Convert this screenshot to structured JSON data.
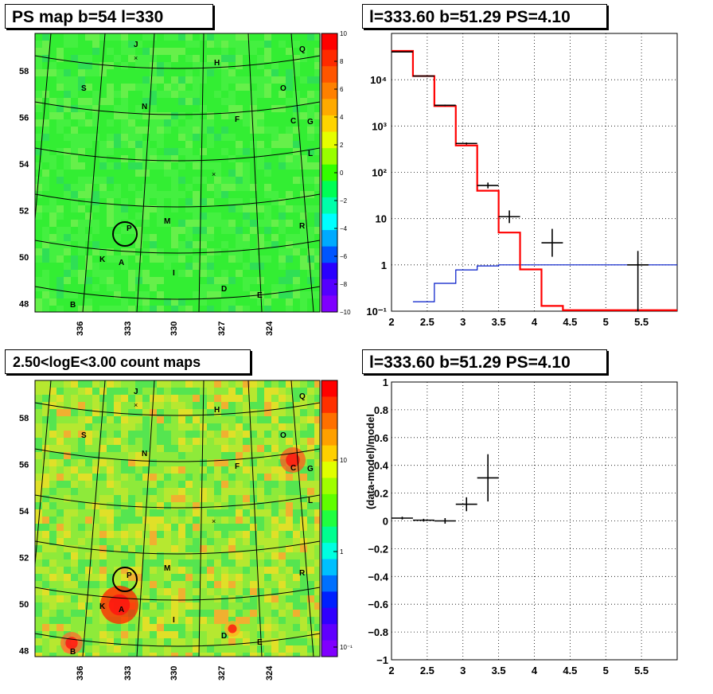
{
  "panels": {
    "tl_title": "PS map b=54 l=330",
    "tr_title": "l=333.60 b=51.29 PS=4.10",
    "bl_title": "2.50<logE<3.00 count maps",
    "br_title": "l=333.60 b=51.29 PS=4.10"
  },
  "maps": {
    "lat_ticks": [
      "58",
      "56",
      "54",
      "52",
      "50",
      "48"
    ],
    "lon_ticks": [
      "336",
      "333",
      "330",
      "327",
      "324"
    ],
    "sources": [
      "J",
      "Q",
      "H",
      "S",
      "O",
      "N",
      "F",
      "C",
      "G",
      "L",
      "M",
      "R",
      "P",
      "K",
      "A",
      "I",
      "D",
      "E",
      "B"
    ],
    "ps_colorbar": {
      "labels": [
        "10",
        "8",
        "6",
        "4",
        "2",
        "0",
        "−2",
        "−4",
        "−6",
        "−8",
        "−10"
      ],
      "colors": [
        "#7f00ff",
        "#2a5cff",
        "#00d0ff",
        "#00ffa0",
        "#33ff33",
        "#ffd400",
        "#ff8000",
        "#ff2000"
      ]
    },
    "count_colorbar": {
      "labels": [
        "10",
        "1",
        "10⁻¹"
      ]
    }
  },
  "chart_data": [
    {
      "type": "line",
      "name": "spectrum",
      "xlim": [
        2,
        6
      ],
      "ylim": [
        0.1,
        100000
      ],
      "yscale": "log",
      "grid": true,
      "x_ticks": [
        "2",
        "2.5",
        "3",
        "3.5",
        "4",
        "4.5",
        "5",
        "5.5"
      ],
      "y_ticks": [
        "10⁻¹",
        "1",
        "10",
        "10²",
        "10³",
        "10⁴"
      ],
      "data_points": [
        {
          "x": 2.15,
          "y": 40000,
          "xerr": 0.15,
          "yerr": [
            39000,
            41000
          ]
        },
        {
          "x": 2.45,
          "y": 12000,
          "xerr": 0.15,
          "yerr": [
            11800,
            12200
          ]
        },
        {
          "x": 2.75,
          "y": 2800,
          "xerr": 0.15,
          "yerr": [
            2700,
            2900
          ]
        },
        {
          "x": 3.05,
          "y": 420,
          "xerr": 0.15,
          "yerr": [
            400,
            440
          ]
        },
        {
          "x": 3.35,
          "y": 52,
          "xerr": 0.15,
          "yerr": [
            45,
            60
          ]
        },
        {
          "x": 3.65,
          "y": 11,
          "xerr": 0.15,
          "yerr": [
            8,
            15
          ]
        },
        {
          "x": 4.25,
          "y": 3,
          "xerr": 0.15,
          "yerr": [
            1.5,
            6
          ]
        },
        {
          "x": 5.45,
          "y": 1,
          "xerr": 0.15,
          "yerr": [
            0.1,
            2
          ]
        }
      ],
      "model_red": [
        {
          "x0": 2.0,
          "x1": 2.3,
          "y": 42000
        },
        {
          "x0": 2.3,
          "x1": 2.6,
          "y": 12000
        },
        {
          "x0": 2.6,
          "x1": 2.9,
          "y": 2700
        },
        {
          "x0": 2.9,
          "x1": 3.2,
          "y": 380
        },
        {
          "x0": 3.2,
          "x1": 3.5,
          "y": 40
        },
        {
          "x0": 3.5,
          "x1": 3.8,
          "y": 5
        },
        {
          "x0": 3.8,
          "x1": 4.1,
          "y": 0.8
        },
        {
          "x0": 4.1,
          "x1": 4.4,
          "y": 0.13
        },
        {
          "x0": 4.4,
          "x1": 6.0,
          "y": 0.105
        }
      ],
      "model_blue": [
        {
          "x0": 2.3,
          "x1": 2.6,
          "y": 0.16
        },
        {
          "x0": 2.6,
          "x1": 2.9,
          "y": 0.4
        },
        {
          "x0": 2.9,
          "x1": 3.2,
          "y": 0.78
        },
        {
          "x0": 3.2,
          "x1": 3.5,
          "y": 0.95
        },
        {
          "x0": 3.5,
          "x1": 6.0,
          "y": 1.0
        }
      ]
    },
    {
      "type": "scatter",
      "name": "residuals",
      "ylabel": "(data-model)/model",
      "xlim": [
        2,
        6
      ],
      "ylim": [
        -1,
        1
      ],
      "grid": true,
      "x_ticks": [
        "2",
        "2.5",
        "3",
        "3.5",
        "4",
        "4.5",
        "5",
        "5.5"
      ],
      "y_ticks": [
        "−1",
        "−0.8",
        "−0.6",
        "−0.4",
        "−0.2",
        "0",
        "0.2",
        "0.4",
        "0.6",
        "0.8",
        "1"
      ],
      "points": [
        {
          "x": 2.15,
          "y": 0.02,
          "xerr": 0.15,
          "yerr": 0.01
        },
        {
          "x": 2.45,
          "y": 0.005,
          "xerr": 0.15,
          "yerr": 0.01
        },
        {
          "x": 2.75,
          "y": 0.0,
          "xerr": 0.15,
          "yerr": 0.02
        },
        {
          "x": 3.05,
          "y": 0.12,
          "xerr": 0.15,
          "yerr": 0.05
        },
        {
          "x": 3.35,
          "y": 0.31,
          "xerr": 0.15,
          "yerr": 0.17
        }
      ]
    }
  ]
}
